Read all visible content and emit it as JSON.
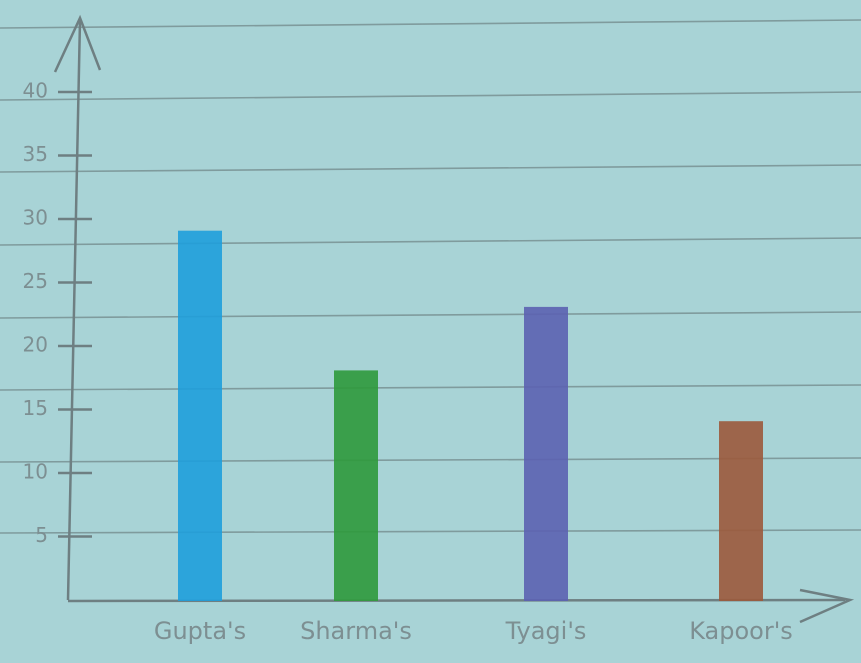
{
  "chart_data": {
    "type": "bar",
    "categories": [
      "Gupta's",
      "Sharma's",
      "Tyagi's",
      "Kapoor's"
    ],
    "values": [
      29,
      18,
      23,
      14
    ],
    "colors": [
      "#1f9fdc",
      "#2f9a3c",
      "#5c62b2",
      "#9c5a3c"
    ],
    "ylim": [
      0,
      40
    ],
    "yticks": [
      5,
      10,
      15,
      20,
      25,
      30,
      35,
      40
    ]
  }
}
